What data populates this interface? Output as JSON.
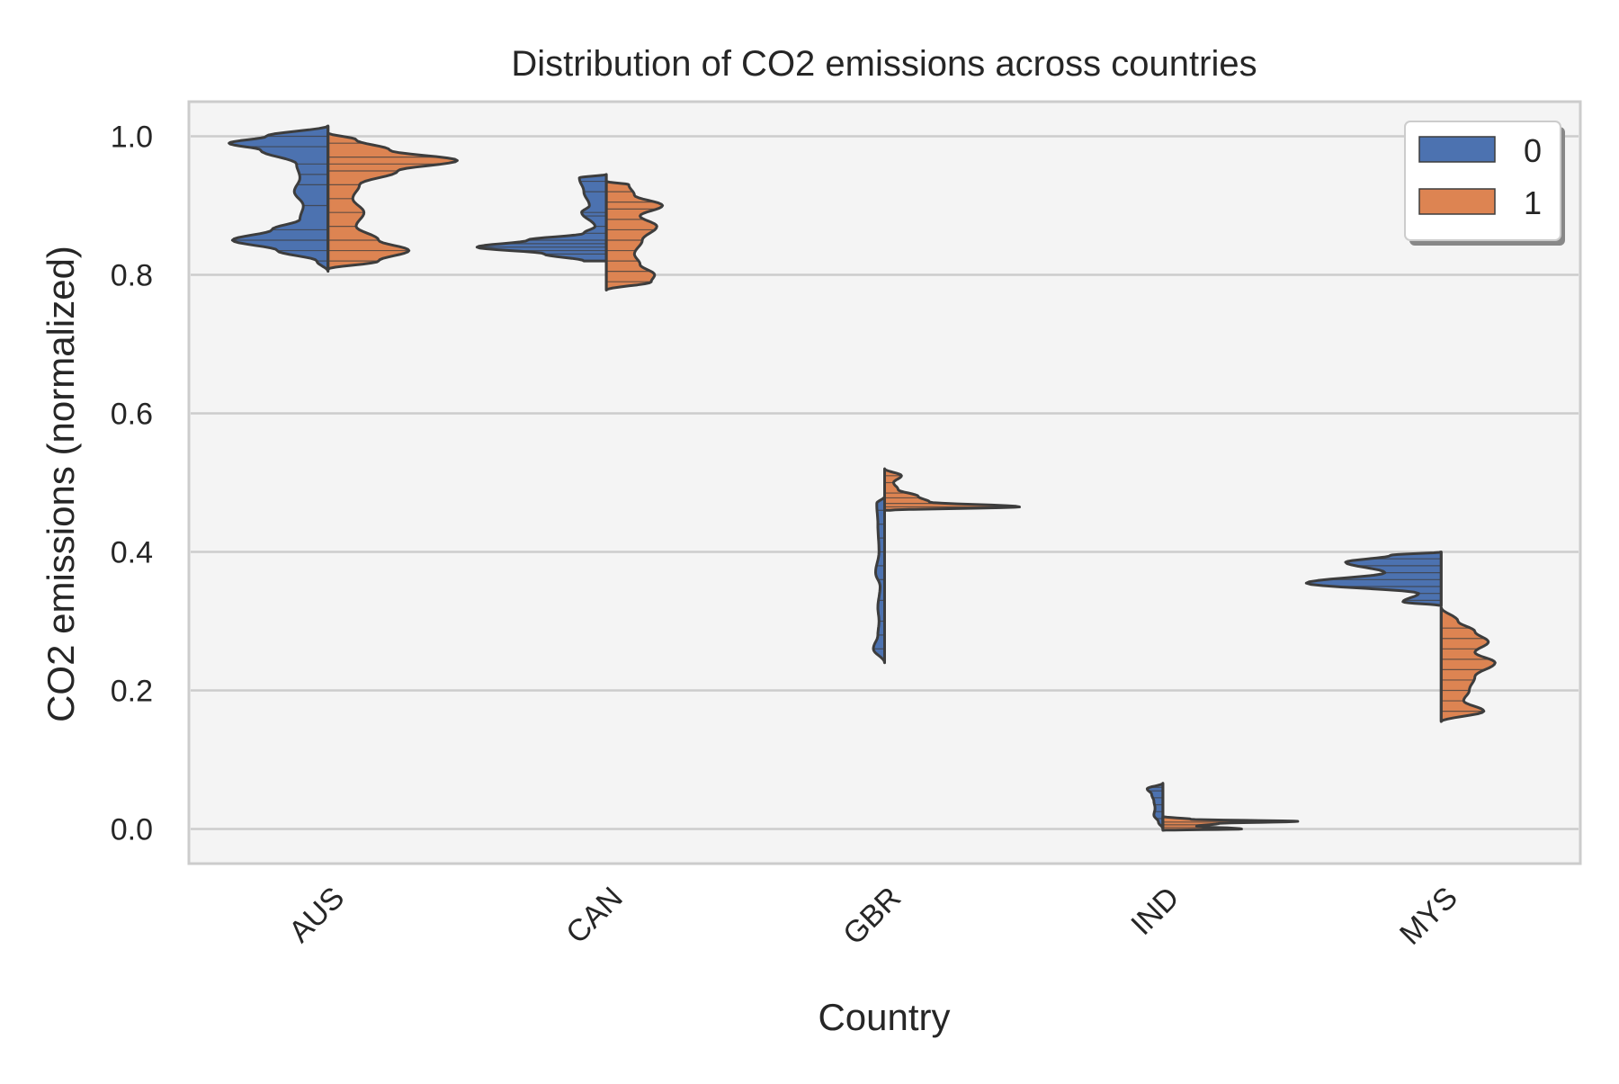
{
  "chart_data": {
    "type": "violin",
    "title": "Distribution of CO2 emissions across countries",
    "xlabel": "Country",
    "ylabel": "CO2 emissions (normalized)",
    "categories": [
      "AUS",
      "CAN",
      "GBR",
      "IND",
      "MYS"
    ],
    "ylim": [
      -0.05,
      1.05
    ],
    "yticks": [
      "0.0",
      "0.2",
      "0.4",
      "0.6",
      "0.8",
      "1.0"
    ],
    "grid": true,
    "split": true,
    "inner": "stick",
    "legend": {
      "placement": "top-right",
      "entries": [
        "0",
        "1"
      ]
    },
    "series": [
      {
        "legend_label": "0",
        "color": "#4C72B0",
        "violins": [
          {
            "category": "AUS",
            "ymin": 0.805,
            "ymax": 1.015,
            "profile": [
              [
                0.805,
                0.0
              ],
              [
                0.82,
                0.1
              ],
              [
                0.835,
                0.45
              ],
              [
                0.85,
                0.85
              ],
              [
                0.865,
                0.5
              ],
              [
                0.88,
                0.25
              ],
              [
                0.9,
                0.22
              ],
              [
                0.92,
                0.3
              ],
              [
                0.94,
                0.25
              ],
              [
                0.96,
                0.28
              ],
              [
                0.98,
                0.6
              ],
              [
                0.99,
                0.88
              ],
              [
                1.0,
                0.55
              ],
              [
                1.015,
                0.0
              ]
            ],
            "sticks": [
              0.82,
              0.835,
              0.85,
              0.865,
              0.9,
              0.93,
              0.945,
              0.96,
              0.985,
              1.0
            ]
          },
          {
            "category": "CAN",
            "ymin": 0.82,
            "ymax": 0.945,
            "profile": [
              [
                0.82,
                0.2
              ],
              [
                0.83,
                0.55
              ],
              [
                0.84,
                1.15
              ],
              [
                0.85,
                0.7
              ],
              [
                0.86,
                0.2
              ],
              [
                0.87,
                0.1
              ],
              [
                0.89,
                0.22
              ],
              [
                0.9,
                0.15
              ],
              [
                0.92,
                0.2
              ],
              [
                0.94,
                0.24
              ],
              [
                0.945,
                0.0
              ]
            ],
            "sticks": [
              0.83,
              0.835,
              0.84,
              0.845,
              0.85,
              0.86,
              0.87,
              0.885,
              0.89,
              0.92,
              0.935
            ]
          },
          {
            "category": "GBR",
            "ymin": 0.24,
            "ymax": 0.48,
            "profile": [
              [
                0.24,
                0.0
              ],
              [
                0.26,
                0.1
              ],
              [
                0.28,
                0.06
              ],
              [
                0.3,
                0.05
              ],
              [
                0.32,
                0.06
              ],
              [
                0.35,
                0.04
              ],
              [
                0.37,
                0.08
              ],
              [
                0.4,
                0.05
              ],
              [
                0.44,
                0.06
              ],
              [
                0.47,
                0.07
              ],
              [
                0.48,
                0.0
              ]
            ],
            "sticks": [
              0.26,
              0.28,
              0.3,
              0.33,
              0.36,
              0.38,
              0.4,
              0.42,
              0.44,
              0.46
            ]
          },
          {
            "category": "IND",
            "ymin": 0.0,
            "ymax": 0.066,
            "profile": [
              [
                0.0,
                0.0
              ],
              [
                0.01,
                0.04
              ],
              [
                0.02,
                0.08
              ],
              [
                0.03,
                0.07
              ],
              [
                0.04,
                0.08
              ],
              [
                0.05,
                0.1
              ],
              [
                0.058,
                0.14
              ],
              [
                0.066,
                0.0
              ]
            ],
            "sticks": [
              0.015,
              0.025,
              0.035,
              0.045,
              0.055,
              0.06
            ]
          },
          {
            "category": "MYS",
            "ymin": 0.322,
            "ymax": 0.4,
            "profile": [
              [
                0.322,
                0.0
              ],
              [
                0.328,
                0.34
              ],
              [
                0.34,
                0.2
              ],
              [
                0.355,
                1.2
              ],
              [
                0.37,
                0.5
              ],
              [
                0.385,
                0.85
              ],
              [
                0.395,
                0.45
              ],
              [
                0.4,
                0.0
              ]
            ],
            "sticks": [
              0.33,
              0.34,
              0.35,
              0.36,
              0.37,
              0.38,
              0.39
            ]
          }
        ]
      },
      {
        "legend_label": "1",
        "color": "#DD8452",
        "violins": [
          {
            "category": "AUS",
            "ymin": 0.808,
            "ymax": 1.005,
            "profile": [
              [
                0.808,
                0.0
              ],
              [
                0.82,
                0.45
              ],
              [
                0.835,
                0.72
              ],
              [
                0.85,
                0.45
              ],
              [
                0.87,
                0.25
              ],
              [
                0.89,
                0.32
              ],
              [
                0.91,
                0.22
              ],
              [
                0.93,
                0.28
              ],
              [
                0.95,
                0.62
              ],
              [
                0.965,
                1.15
              ],
              [
                0.98,
                0.55
              ],
              [
                0.995,
                0.25
              ],
              [
                1.005,
                0.0
              ]
            ],
            "sticks": [
              0.82,
              0.835,
              0.85,
              0.87,
              0.89,
              0.91,
              0.93,
              0.95,
              0.96,
              0.97,
              0.99
            ]
          },
          {
            "category": "CAN",
            "ymin": 0.778,
            "ymax": 0.935,
            "profile": [
              [
                0.778,
                0.0
              ],
              [
                0.79,
                0.4
              ],
              [
                0.8,
                0.43
              ],
              [
                0.815,
                0.3
              ],
              [
                0.83,
                0.25
              ],
              [
                0.85,
                0.32
              ],
              [
                0.87,
                0.45
              ],
              [
                0.885,
                0.3
              ],
              [
                0.9,
                0.5
              ],
              [
                0.915,
                0.25
              ],
              [
                0.93,
                0.2
              ],
              [
                0.935,
                0.0
              ]
            ],
            "sticks": [
              0.79,
              0.805,
              0.82,
              0.835,
              0.85,
              0.865,
              0.88,
              0.895,
              0.905,
              0.92
            ]
          },
          {
            "category": "GBR",
            "ymin": 0.46,
            "ymax": 0.52,
            "profile": [
              [
                0.46,
                0.05
              ],
              [
                0.465,
                1.2
              ],
              [
                0.472,
                0.4
              ],
              [
                0.48,
                0.3
              ],
              [
                0.49,
                0.12
              ],
              [
                0.5,
                0.08
              ],
              [
                0.51,
                0.15
              ],
              [
                0.52,
                0.0
              ]
            ],
            "sticks": [
              0.465,
              0.47,
              0.478,
              0.485,
              0.5,
              0.51
            ]
          },
          {
            "category": "IND",
            "ymin": -0.002,
            "ymax": 0.018,
            "profile": [
              [
                -0.002,
                0.0
              ],
              [
                0.0,
                0.7
              ],
              [
                0.004,
                0.3
              ],
              [
                0.008,
                0.5
              ],
              [
                0.011,
                1.2
              ],
              [
                0.014,
                0.25
              ],
              [
                0.018,
                0.0
              ]
            ],
            "sticks": [
              0.002,
              0.006,
              0.01
            ]
          },
          {
            "category": "MYS",
            "ymin": 0.155,
            "ymax": 0.32,
            "profile": [
              [
                0.155,
                0.0
              ],
              [
                0.17,
                0.38
              ],
              [
                0.185,
                0.2
              ],
              [
                0.2,
                0.25
              ],
              [
                0.22,
                0.3
              ],
              [
                0.24,
                0.48
              ],
              [
                0.255,
                0.3
              ],
              [
                0.27,
                0.42
              ],
              [
                0.285,
                0.3
              ],
              [
                0.3,
                0.15
              ],
              [
                0.32,
                0.0
              ]
            ],
            "sticks": [
              0.17,
              0.185,
              0.2,
              0.215,
              0.23,
              0.245,
              0.26,
              0.275,
              0.29
            ]
          }
        ]
      }
    ]
  }
}
